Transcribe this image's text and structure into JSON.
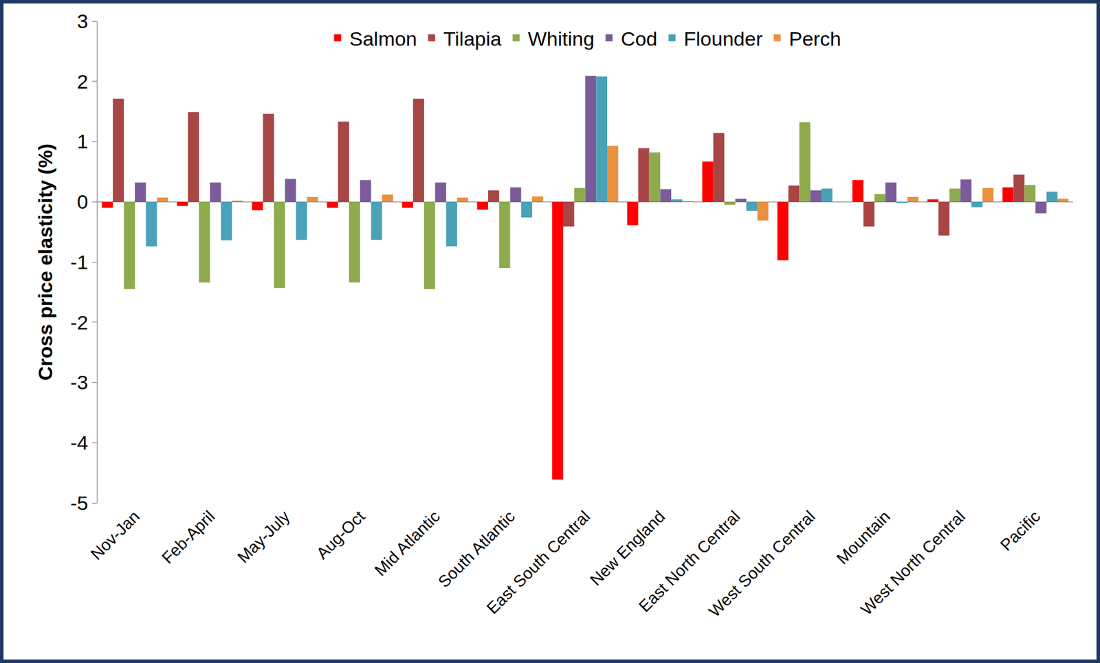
{
  "chart_data": {
    "type": "bar",
    "y_label": "Cross price elasticity (%)",
    "categories": [
      "Nov-Jan",
      "Feb-April",
      "May-July",
      "Aug-Oct",
      "Mid Atlantic",
      "South Atlantic",
      "East South Central",
      "New England",
      "East North Central",
      "West South Central",
      "Mountain",
      "West North Central",
      "Pacific"
    ],
    "series": [
      {
        "name": "Salmon",
        "color": "#ff0000",
        "values": [
          -0.1,
          -0.07,
          -0.14,
          -0.1,
          -0.1,
          -0.13,
          -4.61,
          -0.39,
          0.67,
          -0.97,
          0.36,
          0.04,
          0.24
        ]
      },
      {
        "name": "Tilapia",
        "color": "#a84545",
        "values": [
          1.71,
          1.49,
          1.46,
          1.33,
          1.71,
          0.19,
          -0.41,
          0.89,
          1.14,
          0.27,
          -0.41,
          -0.56,
          0.45
        ]
      },
      {
        "name": "Whiting",
        "color": "#8eab4d",
        "values": [
          -1.45,
          -1.34,
          -1.43,
          -1.34,
          -1.45,
          -1.1,
          0.23,
          0.82,
          -0.05,
          1.32,
          0.13,
          0.22,
          0.28
        ]
      },
      {
        "name": "Cod",
        "color": "#7a5c9a",
        "values": [
          0.32,
          0.32,
          0.38,
          0.36,
          0.32,
          0.24,
          2.09,
          0.21,
          0.05,
          0.19,
          0.32,
          0.37,
          -0.19
        ]
      },
      {
        "name": "Flounder",
        "color": "#4aa2b8",
        "values": [
          -0.74,
          -0.64,
          -0.63,
          -0.63,
          -0.74,
          -0.26,
          2.08,
          0.04,
          -0.15,
          0.22,
          -0.02,
          -0.09,
          0.17
        ]
      },
      {
        "name": "Perch",
        "color": "#e8913f",
        "values": [
          0.07,
          0.02,
          0.08,
          0.12,
          0.07,
          0.09,
          0.93,
          0.01,
          -0.31,
          0,
          0.08,
          0.23,
          0.05
        ]
      }
    ],
    "ylim": [
      -5,
      3
    ],
    "yticks": [
      -5,
      -4,
      -3,
      -2,
      -1,
      0,
      1,
      2,
      3
    ],
    "grid": false,
    "legend": "top"
  }
}
